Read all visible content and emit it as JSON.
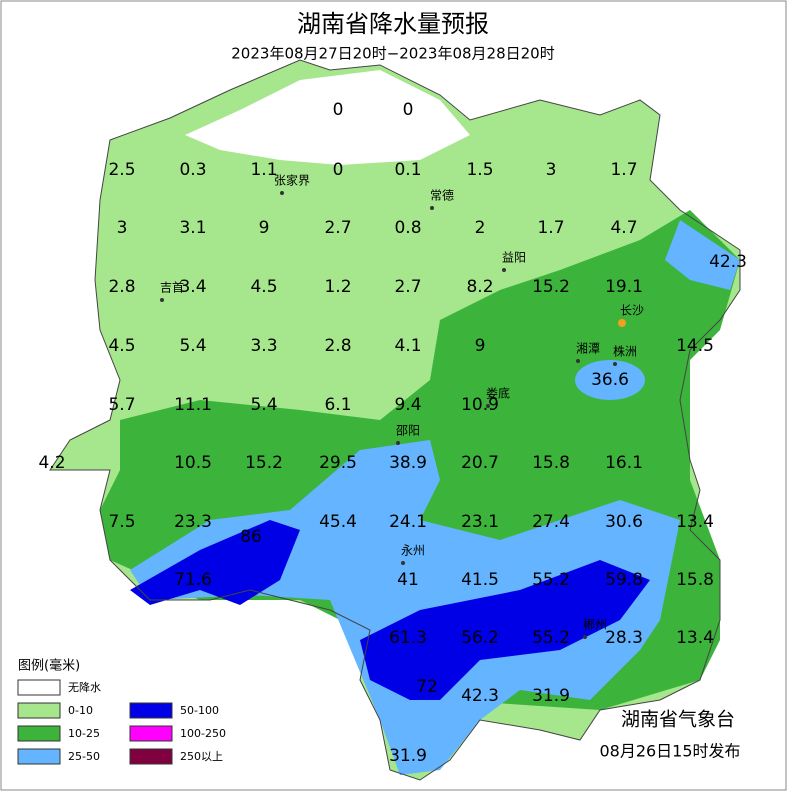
{
  "header": {
    "title": "湖南省降水量预报",
    "subtitle": "2023年08月27日20时−2023年08月28日20时"
  },
  "values": [
    "0",
    "0",
    "2.5",
    "0.3",
    "1.1",
    "0",
    "0.1",
    "1.5",
    "3",
    "1.7",
    "3",
    "3.1",
    "9",
    "2.7",
    "0.8",
    "2",
    "1.7",
    "4.7",
    "2.8",
    "3.4",
    "4.5",
    "1.2",
    "2.7",
    "8.2",
    "15.2",
    "19.1",
    "42.3",
    "4.5",
    "5.4",
    "3.3",
    "2.8",
    "4.1",
    "9",
    "14.5",
    "36.6",
    "5.7",
    "11.1",
    "5.4",
    "6.1",
    "9.4",
    "10.9",
    "4.2",
    "10.5",
    "15.2",
    "29.5",
    "38.9",
    "20.7",
    "15.8",
    "16.1",
    "7.5",
    "23.3",
    "45.4",
    "24.1",
    "23.1",
    "27.4",
    "30.6",
    "13.4",
    "86",
    "71.6",
    "41",
    "41.5",
    "55.2",
    "59.8",
    "15.8",
    "61.3",
    "56.2",
    "55.2",
    "28.3",
    "13.4",
    "72",
    "42.3",
    "31.9",
    "31.9"
  ],
  "cities": [
    "张家界",
    "常德",
    "益阳",
    "吉首",
    "长沙",
    "湘潭",
    "株洲",
    "娄底",
    "邵阳",
    "永州",
    "郴州"
  ],
  "legend": {
    "title": "图例(毫米)",
    "items": [
      {
        "label": "无降水",
        "color": "#ffffff"
      },
      {
        "label": "0-10",
        "color": "#a6e68c"
      },
      {
        "label": "10-25",
        "color": "#3cb43c"
      },
      {
        "label": "25-50",
        "color": "#64b4ff"
      },
      {
        "label": "50-100",
        "color": "#0000e6"
      },
      {
        "label": "100-250",
        "color": "#ff00ff"
      },
      {
        "label": "250以上",
        "color": "#800040"
      }
    ]
  },
  "footer": {
    "agency": "湖南省气象台",
    "issued": "08月26日15时发布"
  }
}
